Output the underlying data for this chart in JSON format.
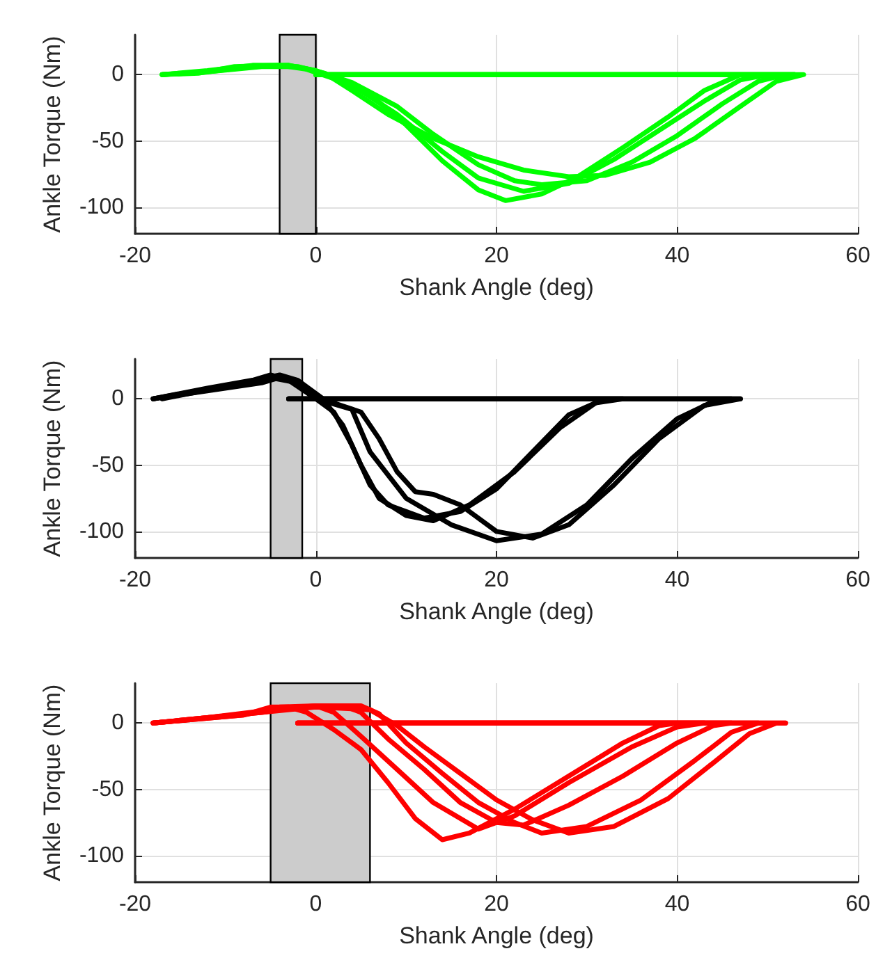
{
  "chart_data": [
    {
      "type": "line",
      "xlabel": "Shank Angle (deg)",
      "ylabel": "Ankle Torque (Nm)",
      "xlim": [
        -20,
        60
      ],
      "ylim": [
        -120,
        30
      ],
      "xticks": [
        -20,
        0,
        20,
        40,
        60
      ],
      "yticks": [
        -100,
        -50,
        0
      ],
      "grid": true,
      "marker": "none",
      "bands": [
        {
          "axis": "x",
          "from": -4,
          "to": 0,
          "color": "#cccccc"
        }
      ],
      "series": [
        {
          "color": "#00ff00",
          "x": [
            -17,
            -13,
            -9,
            -4,
            -1,
            2,
            6,
            10,
            14,
            18,
            21,
            25,
            29,
            34,
            39,
            43,
            47,
            53,
            0
          ],
          "values": [
            0,
            1,
            6,
            7,
            4,
            -3,
            -15,
            -38,
            -65,
            -87,
            -95,
            -90,
            -77,
            -55,
            -32,
            -12,
            0,
            0,
            0
          ]
        },
        {
          "color": "#00ff00",
          "x": [
            -17,
            -12,
            -7,
            -3,
            0,
            4,
            9,
            14,
            18,
            23,
            28,
            33,
            38,
            43,
            47,
            50,
            53,
            0
          ],
          "values": [
            0,
            3,
            7,
            7,
            3,
            -8,
            -30,
            -58,
            -78,
            -88,
            -82,
            -64,
            -42,
            -20,
            -4,
            0,
            0,
            0
          ]
        },
        {
          "color": "#00ff00",
          "x": [
            -17,
            -12,
            -7,
            -3,
            0,
            4,
            9,
            13,
            18,
            22,
            25,
            30,
            35,
            40,
            45,
            49,
            52,
            53,
            0
          ],
          "values": [
            0,
            2,
            6,
            7,
            3,
            -6,
            -24,
            -45,
            -68,
            -80,
            -83,
            -80,
            -66,
            -46,
            -22,
            -5,
            0,
            0,
            0
          ]
        },
        {
          "color": "#00ff00",
          "x": [
            -17,
            -12,
            -6,
            -2,
            1,
            4,
            8,
            13,
            18,
            23,
            28,
            32,
            37,
            42,
            47,
            51,
            54,
            0
          ],
          "values": [
            0,
            2,
            6,
            6,
            1,
            -12,
            -30,
            -48,
            -62,
            -72,
            -77,
            -76,
            -66,
            -48,
            -24,
            -5,
            0,
            0
          ]
        }
      ]
    },
    {
      "type": "line",
      "xlabel": "Shank Angle (deg)",
      "ylabel": "Ankle Torque (Nm)",
      "xlim": [
        -20,
        60
      ],
      "ylim": [
        -120,
        30
      ],
      "xticks": [
        -20,
        0,
        20,
        40,
        60
      ],
      "yticks": [
        -100,
        -50,
        0
      ],
      "grid": true,
      "marker": "none",
      "bands": [
        {
          "axis": "x",
          "from": -5,
          "to": -1.5,
          "color": "#cccccc"
        }
      ],
      "series": [
        {
          "color": "#000000",
          "x": [
            -18,
            -12,
            -7,
            -5,
            -3,
            0,
            2,
            4,
            6,
            8,
            12,
            16,
            20,
            24,
            28,
            32,
            47,
            -3
          ],
          "values": [
            0,
            8,
            14,
            18,
            14,
            0,
            -10,
            -35,
            -65,
            -80,
            -90,
            -85,
            -68,
            -40,
            -12,
            0,
            0,
            0
          ]
        },
        {
          "color": "#000000",
          "x": [
            -18,
            -12,
            -6,
            -4,
            -2,
            1,
            3,
            5,
            7,
            10,
            13,
            17,
            22,
            27,
            31,
            34,
            -3
          ],
          "values": [
            0,
            6,
            12,
            16,
            12,
            -2,
            -20,
            -50,
            -75,
            -88,
            -92,
            -80,
            -55,
            -22,
            -3,
            0,
            0
          ]
        },
        {
          "color": "#000000",
          "x": [
            -17,
            -8,
            -4,
            -2,
            1,
            5,
            7,
            9,
            11,
            13,
            16,
            20,
            24,
            28,
            33,
            38,
            43,
            47,
            -3
          ],
          "values": [
            0,
            12,
            18,
            14,
            -1,
            -10,
            -30,
            -55,
            -70,
            -72,
            -80,
            -100,
            -105,
            -95,
            -65,
            -30,
            -5,
            0,
            0
          ]
        },
        {
          "color": "#000000",
          "x": [
            -18,
            -10,
            -5,
            -2,
            1,
            4,
            6,
            10,
            15,
            20,
            25,
            30,
            35,
            40,
            44,
            46,
            -3
          ],
          "values": [
            0,
            10,
            16,
            12,
            -2,
            -8,
            -40,
            -75,
            -95,
            -107,
            -102,
            -80,
            -45,
            -15,
            -2,
            0,
            0
          ]
        }
      ]
    },
    {
      "type": "line",
      "xlabel": "Shank Angle (deg)",
      "ylabel": "Ankle Torque (Nm)",
      "xlim": [
        -20,
        60
      ],
      "ylim": [
        -120,
        30
      ],
      "xticks": [
        -20,
        0,
        20,
        40,
        60
      ],
      "yticks": [
        -100,
        -50,
        0
      ],
      "grid": true,
      "marker": "none",
      "bands": [
        {
          "axis": "x",
          "from": -5,
          "to": 6,
          "color": "#cccccc"
        }
      ],
      "series": [
        {
          "color": "#ff0000",
          "x": [
            -18,
            -13,
            -8,
            -5,
            -3,
            -1,
            2,
            5,
            8,
            11,
            14,
            17,
            22,
            28,
            34,
            38,
            40,
            52,
            -2
          ],
          "values": [
            0,
            3,
            6,
            12,
            12,
            8,
            -5,
            -20,
            -45,
            -72,
            -88,
            -83,
            -65,
            -40,
            -15,
            -2,
            0,
            0,
            0
          ]
        },
        {
          "color": "#ff0000",
          "x": [
            -18,
            -13,
            -8,
            -4,
            0,
            2,
            5,
            9,
            13,
            18,
            22,
            28,
            35,
            40,
            43,
            -2
          ],
          "values": [
            0,
            3,
            6,
            12,
            13,
            8,
            -10,
            -35,
            -60,
            -80,
            -70,
            -45,
            -18,
            -3,
            0,
            0
          ]
        },
        {
          "color": "#ff0000",
          "x": [
            -18,
            -12,
            -6,
            -2,
            3,
            5,
            8,
            12,
            16,
            20,
            23,
            28,
            34,
            40,
            44,
            46,
            -2
          ],
          "values": [
            0,
            4,
            8,
            12,
            13,
            8,
            -12,
            -35,
            -60,
            -75,
            -77,
            -62,
            -40,
            -15,
            -2,
            0,
            0
          ]
        },
        {
          "color": "#ff0000",
          "x": [
            -18,
            -12,
            -6,
            0,
            5,
            7,
            10,
            14,
            18,
            22,
            25,
            30,
            36,
            42,
            46,
            49,
            -2
          ],
          "values": [
            0,
            4,
            9,
            13,
            13,
            7,
            -15,
            -38,
            -60,
            -75,
            -83,
            -78,
            -58,
            -28,
            -7,
            0,
            0
          ]
        },
        {
          "color": "#ff0000",
          "x": [
            -18,
            -12,
            -6,
            0,
            6,
            9,
            12,
            16,
            20,
            24,
            28,
            33,
            39,
            44,
            48,
            51,
            52,
            -2
          ],
          "values": [
            0,
            4,
            8,
            12,
            10,
            -2,
            -18,
            -38,
            -58,
            -73,
            -83,
            -78,
            -57,
            -30,
            -8,
            0,
            0,
            0
          ]
        }
      ]
    }
  ]
}
